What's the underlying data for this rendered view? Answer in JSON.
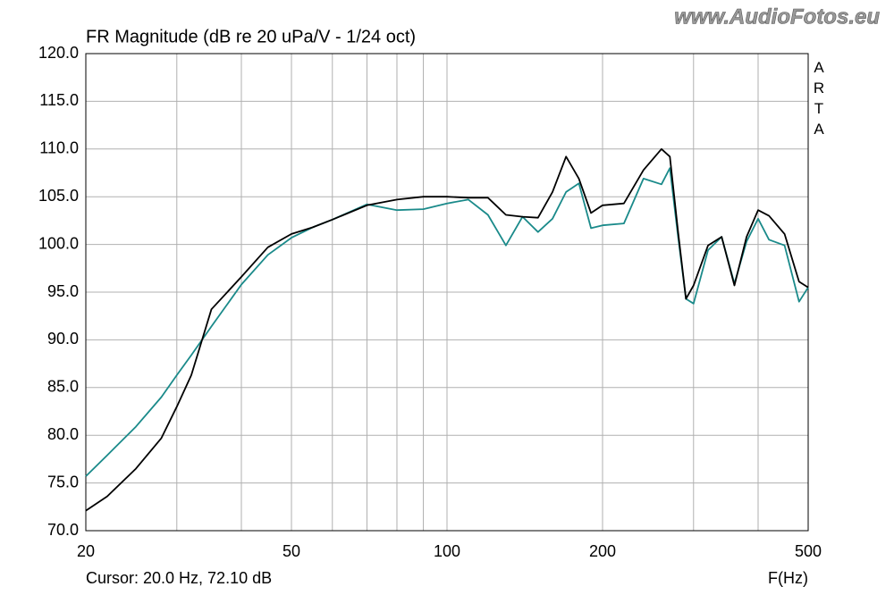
{
  "chart_data": {
    "type": "line",
    "title": "FR Magnitude (dB re 20 uPa/V - 1/24 oct)",
    "watermark": "www.AudioFotos.eu",
    "side_label": "ARTA",
    "cursor_text": "Cursor: 20.0 Hz, 72.10 dB",
    "x_label": "F(Hz)",
    "x_scale": "log",
    "grid": true,
    "xlim": [
      20,
      500
    ],
    "xticks": [
      20,
      50,
      100,
      200,
      500
    ],
    "xminor": [
      30,
      40,
      60,
      70,
      80,
      90,
      300,
      400
    ],
    "ylim": [
      70,
      120
    ],
    "yticks": [
      {
        "value": 70,
        "label": "70.0"
      },
      {
        "value": 75,
        "label": "75.0"
      },
      {
        "value": 80,
        "label": "80.0"
      },
      {
        "value": 85,
        "label": "85.0"
      },
      {
        "value": 90,
        "label": "90.0"
      },
      {
        "value": 95,
        "label": "95.0"
      },
      {
        "value": 100,
        "label": "100.0"
      },
      {
        "value": 105,
        "label": "105.0"
      },
      {
        "value": 110,
        "label": "110.0"
      },
      {
        "value": 115,
        "label": "115.0"
      },
      {
        "value": 120,
        "label": "120.0"
      }
    ],
    "x": [
      20,
      22,
      25,
      28,
      30,
      32,
      35,
      40,
      45,
      50,
      55,
      60,
      70,
      80,
      90,
      100,
      110,
      120,
      130,
      140,
      150,
      160,
      170,
      180,
      190,
      200,
      220,
      240,
      260,
      270,
      280,
      290,
      300,
      320,
      340,
      360,
      380,
      400,
      420,
      450,
      480,
      500
    ],
    "series": [
      {
        "color": "#1a8a8a",
        "values": [
          75.7,
          77.9,
          80.9,
          84.0,
          86.3,
          88.4,
          91.4,
          95.8,
          98.9,
          100.7,
          101.8,
          102.6,
          104.2,
          103.6,
          103.7,
          104.3,
          104.7,
          103.1,
          99.9,
          102.9,
          101.3,
          102.7,
          105.5,
          106.4,
          101.7,
          102.0,
          102.2,
          106.9,
          106.3,
          108.0,
          100.8,
          94.3,
          93.8,
          99.4,
          100.8,
          95.9,
          100.3,
          102.7,
          100.5,
          99.9,
          94.0,
          95.5
        ]
      },
      {
        "color": "#000000",
        "values": [
          72.1,
          73.6,
          76.5,
          79.7,
          83.0,
          86.3,
          93.2,
          96.6,
          99.7,
          101.1,
          101.8,
          102.6,
          104.1,
          104.7,
          105.0,
          105.0,
          104.9,
          104.9,
          103.1,
          102.9,
          102.8,
          105.5,
          109.2,
          106.9,
          103.3,
          104.1,
          104.3,
          107.8,
          110.0,
          109.2,
          101.3,
          94.3,
          95.7,
          99.9,
          100.8,
          95.7,
          100.8,
          103.6,
          103.0,
          101.1,
          96.1,
          95.5
        ]
      }
    ]
  }
}
